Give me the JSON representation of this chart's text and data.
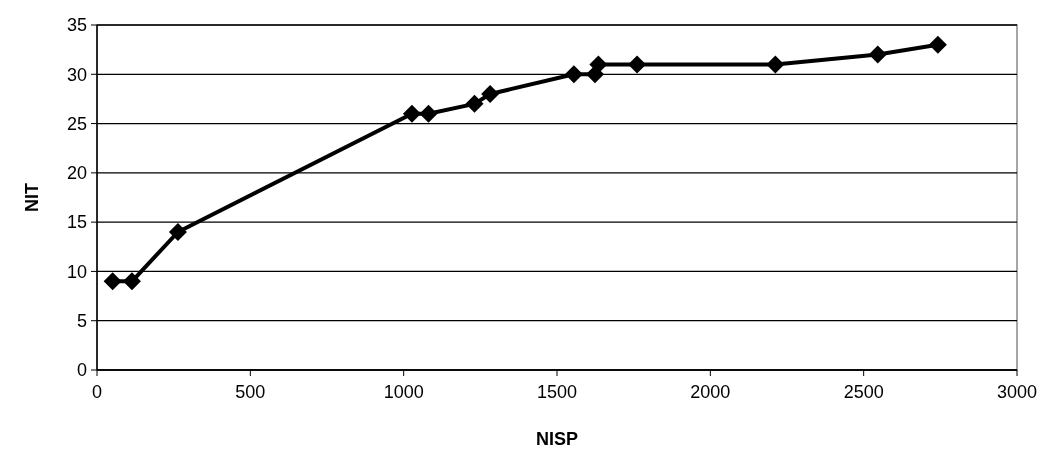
{
  "chart_data": {
    "type": "line",
    "xlabel": "NISP",
    "ylabel": "NIT",
    "x": [
      51,
      114,
      264,
      1027,
      1081,
      1231,
      1282,
      1555,
      1624,
      1635,
      1761,
      2212,
      2546,
      2742
    ],
    "series": [
      {
        "color": "#000000",
        "values": [
          9,
          9,
          14,
          26,
          26,
          27,
          28,
          30,
          30,
          31,
          31,
          31,
          32,
          33
        ]
      }
    ],
    "xlim": [
      0,
      3000
    ],
    "xticks": [
      0,
      500,
      1000,
      1500,
      2000,
      2500,
      3000
    ],
    "ylim": [
      0,
      35
    ],
    "yticks": [
      0,
      5,
      10,
      15,
      20,
      25,
      30,
      35
    ],
    "grid": "y",
    "marker": "diamond",
    "line_style": "solid"
  }
}
